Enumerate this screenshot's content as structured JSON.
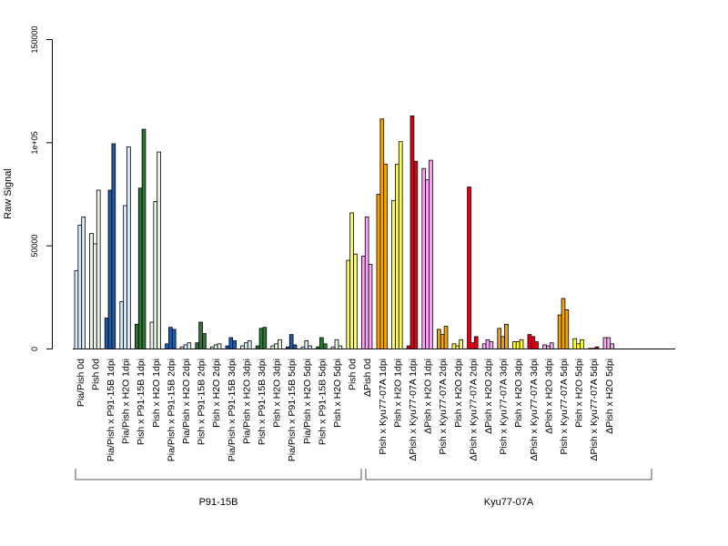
{
  "chart_data": {
    "type": "bar",
    "ylabel": "Raw Signal",
    "ylim": [
      0,
      150000
    ],
    "yticks": [
      {
        "value": 0,
        "label": "0"
      },
      {
        "value": 50000,
        "label": "50000"
      },
      {
        "value": 100000,
        "label": "1e+05"
      },
      {
        "value": 150000,
        "label": "150000"
      }
    ],
    "grid": false,
    "legend": "none",
    "colors": {
      "lightblue": "#dce9f7",
      "mintgreen": "#e8f5e4",
      "darkblue": "#1f5ba8",
      "darkgreen": "#2a7a35",
      "yellow": "#ffff33",
      "pink": "#f7a8f0",
      "orange": "#f5a500",
      "red": "#dd0019"
    },
    "categories": [
      {
        "label": "Pia/Pish 0d",
        "color": "lightblue",
        "values": [
          38000,
          60000,
          64000
        ]
      },
      {
        "label": "Pish 0d",
        "color": "mintgreen",
        "values": [
          56000,
          51000,
          77000
        ]
      },
      {
        "label": "Pia/Pish x P91-15B 1dpi",
        "color": "darkblue",
        "values": [
          15000,
          77000,
          99500
        ]
      },
      {
        "label": "Pia/Pish x H2O 1dpi",
        "color": "lightblue",
        "values": [
          23000,
          69500,
          98000
        ]
      },
      {
        "label": "Pish x P91-15B 1dpi",
        "color": "darkgreen",
        "values": [
          12000,
          78000,
          106500
        ]
      },
      {
        "label": "Pish x H2O 1dpi",
        "color": "mintgreen",
        "values": [
          13000,
          71500,
          95500
        ]
      },
      {
        "label": "Pia/Pish x P91-15B 2dpi",
        "color": "darkblue",
        "values": [
          2500,
          10500,
          9500
        ]
      },
      {
        "label": "Pia/Pish x H2O 2dpi",
        "color": "lightblue",
        "values": [
          1000,
          2000,
          3000
        ]
      },
      {
        "label": "Pish x P91-15B 2dpi",
        "color": "darkgreen",
        "values": [
          3000,
          13000,
          7500
        ]
      },
      {
        "label": "Pish x H2O 2dpi",
        "color": "mintgreen",
        "values": [
          1000,
          2000,
          2500
        ]
      },
      {
        "label": "Pia/Pish x P91-15B 3dpi",
        "color": "darkblue",
        "values": [
          1500,
          5500,
          4000
        ]
      },
      {
        "label": "Pia/Pish x H2O 3dpi",
        "color": "lightblue",
        "values": [
          1500,
          3000,
          4000
        ]
      },
      {
        "label": "Pish x P91-15B 3dpi",
        "color": "darkgreen",
        "values": [
          1500,
          10000,
          10500
        ]
      },
      {
        "label": "Pish x H2O 3dpi",
        "color": "mintgreen",
        "values": [
          1500,
          2500,
          4500
        ]
      },
      {
        "label": "Pia/Pish x P91-15B 5dpi",
        "color": "darkblue",
        "values": [
          1000,
          7000,
          2000
        ]
      },
      {
        "label": "Pia/Pish x H2O 5dpi",
        "color": "lightblue",
        "values": [
          1000,
          4000,
          1500
        ]
      },
      {
        "label": "Pish x P91-15B 5dpi",
        "color": "darkgreen",
        "values": [
          1000,
          5500,
          2500
        ]
      },
      {
        "label": "Pish x H2O 5dpi",
        "color": "mintgreen",
        "values": [
          1000,
          4500,
          1500
        ]
      },
      {
        "label": "Pish 0d",
        "color": "yellow",
        "values": [
          43000,
          66000,
          46000
        ]
      },
      {
        "label": "ΔPish 0d",
        "color": "pink",
        "values": [
          45000,
          64000,
          41000
        ]
      },
      {
        "label": "Pish x Kyu77-07A 1dpi",
        "color": "orange",
        "values": [
          75000,
          111500,
          89500
        ]
      },
      {
        "label": "Pish x H2O 1dpi",
        "color": "yellow",
        "values": [
          72000,
          89500,
          100500
        ]
      },
      {
        "label": "ΔPish x Kyu77-07A 1dpi",
        "color": "red",
        "values": [
          1500,
          113000,
          91000
        ]
      },
      {
        "label": "ΔPish x H2O 1dpi",
        "color": "pink",
        "values": [
          87500,
          82000,
          91500
        ]
      },
      {
        "label": "Pish x Kyu77-07A 2dpi",
        "color": "orange",
        "values": [
          9500,
          7000,
          11000
        ]
      },
      {
        "label": "Pish x H2O 2dpi",
        "color": "yellow",
        "values": [
          2500,
          1500,
          4500
        ]
      },
      {
        "label": "ΔPish x Kyu77-07A 2dpi",
        "color": "red",
        "values": [
          78500,
          3000,
          6000
        ]
      },
      {
        "label": "ΔPish x H2O 2dpi",
        "color": "pink",
        "values": [
          2500,
          4500,
          3500
        ]
      },
      {
        "label": "Pish x Kyu77-07A 3dpi",
        "color": "orange",
        "values": [
          10000,
          6000,
          12000
        ]
      },
      {
        "label": "Pish x H2O 3dpi",
        "color": "yellow",
        "values": [
          3500,
          3500,
          4500
        ]
      },
      {
        "label": "ΔPish x Kyu77-07A 3dpi",
        "color": "red",
        "values": [
          7000,
          6000,
          3500
        ]
      },
      {
        "label": "ΔPish x H2O 3dpi",
        "color": "pink",
        "values": [
          2000,
          1500,
          3000
        ]
      },
      {
        "label": "Pish x Kyu77-07A 5dpi",
        "color": "orange",
        "values": [
          16500,
          24500,
          19000
        ]
      },
      {
        "label": "Pish x H2O 5dpi",
        "color": "yellow",
        "values": [
          5000,
          2500,
          4500
        ]
      },
      {
        "label": "ΔPish x Kyu77-07A 5dpi",
        "color": "red",
        "values": [
          300,
          300,
          1000
        ]
      },
      {
        "label": "ΔPish x H2O 5dpi",
        "color": "pink",
        "values": [
          5500,
          5500,
          2500
        ]
      }
    ],
    "groups": [
      {
        "label": "P91-15B",
        "from": 0,
        "to": 17
      },
      {
        "label": "Kyu77-07A",
        "from": 18,
        "to": 35
      }
    ]
  }
}
